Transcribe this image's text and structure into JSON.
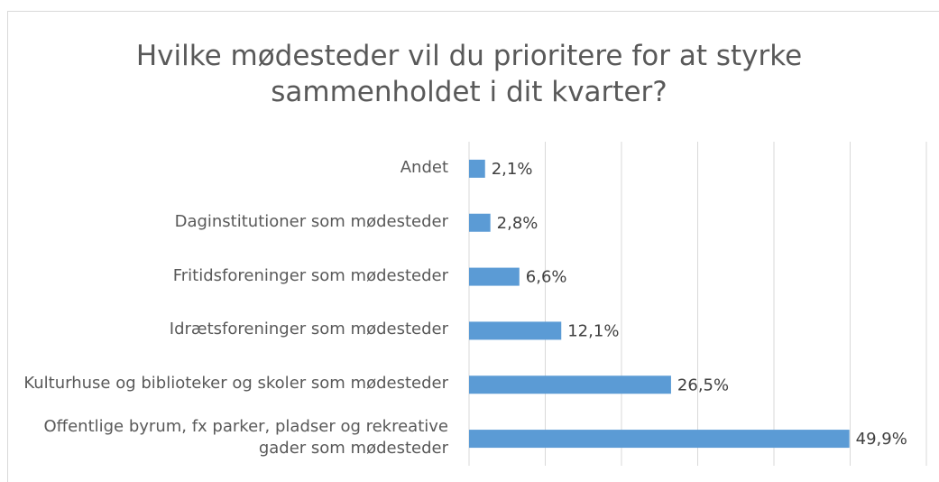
{
  "chart_data": {
    "type": "bar",
    "orientation": "horizontal",
    "title": "Hvilke mødesteder vil du prioritere for at styrke sammenholdet i dit kvarter?",
    "categories": [
      "Andet",
      "Daginstitutioner som mødesteder",
      "Fritidsforeninger som mødesteder",
      "Idrætsforeninger som mødesteder",
      "Kulturhuse og biblioteker og skoler som mødesteder",
      "Offentlige byrum, fx parker, pladser og rekreative gader som mødesteder"
    ],
    "values": [
      2.1,
      2.8,
      6.6,
      12.1,
      26.5,
      49.9
    ],
    "value_labels": [
      "2,1%",
      "2,8%",
      "6,6%",
      "12,1%",
      "26,5%",
      "49,9%"
    ],
    "color": "#5b9bd5",
    "xlim": [
      0,
      60
    ],
    "xticks": [
      0,
      10,
      20,
      30,
      40,
      50,
      60
    ],
    "grid": true
  }
}
